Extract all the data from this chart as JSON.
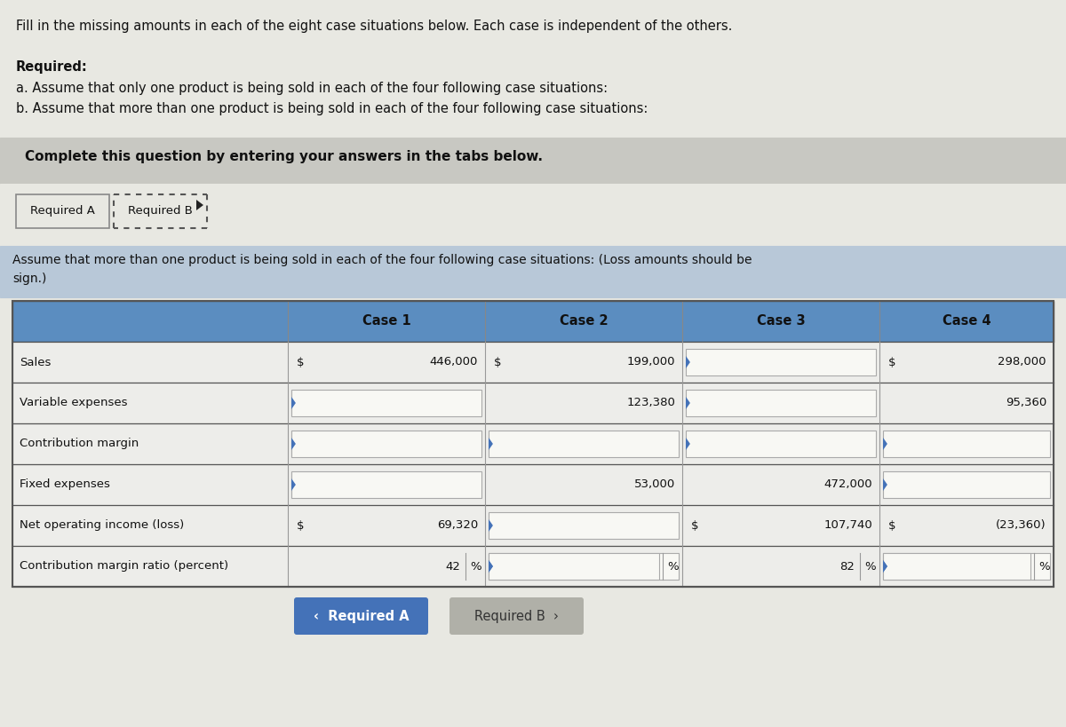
{
  "title_text": "Fill in the missing amounts in each of the eight case situations below. Each case is independent of the others.",
  "required_label": "Required:",
  "req_a": "a. Assume that only one product is being sold in each of the four following case situations:",
  "req_b": "b. Assume that more than one product is being sold in each of the four following case situations:",
  "complete_text": "Complete this question by entering your answers in the tabs below.",
  "tab1_text": "Required A",
  "tab2_text": "Required B",
  "instruction_line1": "Assume that more than one product is being sold in each of the four following case situations: (Loss amounts should be",
  "instruction_line2": "sign.)",
  "col_headers": [
    "",
    "Case 1",
    "Case 2",
    "Case 3",
    "Case 4"
  ],
  "row_labels": [
    "Sales",
    "Variable expenses",
    "Contribution margin",
    "Fixed expenses",
    "Net operating income (loss)",
    "Contribution margin ratio (percent)"
  ],
  "cell_data": {
    "Sales": {
      "case1": {
        "prefix": "$",
        "value": "446,000"
      },
      "case2": {
        "prefix": "$",
        "value": "199,000"
      },
      "case3": {
        "prefix": "",
        "value": ""
      },
      "case4": {
        "prefix": "$",
        "value": "298,000"
      }
    },
    "Variable expenses": {
      "case1": {
        "prefix": "",
        "value": ""
      },
      "case2": {
        "prefix": "",
        "value": "123,380"
      },
      "case3": {
        "prefix": "",
        "value": ""
      },
      "case4": {
        "prefix": "",
        "value": "95,360"
      }
    },
    "Contribution margin": {
      "case1": {
        "prefix": "",
        "value": ""
      },
      "case2": {
        "prefix": "",
        "value": ""
      },
      "case3": {
        "prefix": "",
        "value": ""
      },
      "case4": {
        "prefix": "",
        "value": ""
      }
    },
    "Fixed expenses": {
      "case1": {
        "prefix": "",
        "value": ""
      },
      "case2": {
        "prefix": "",
        "value": "53,000"
      },
      "case3": {
        "prefix": "",
        "value": "472,000"
      },
      "case4": {
        "prefix": "",
        "value": ""
      }
    },
    "Net operating income (loss)": {
      "case1": {
        "prefix": "$",
        "value": "69,320"
      },
      "case2": {
        "prefix": "",
        "value": ""
      },
      "case3": {
        "prefix": "$",
        "value": "107,740"
      },
      "case4": {
        "prefix": "$",
        "value": "(23,360)"
      }
    },
    "Contribution margin ratio (percent)": {
      "case1": {
        "value": "42",
        "suffix": "%"
      },
      "case2": {
        "value": "",
        "suffix": "%"
      },
      "case3": {
        "value": "82",
        "suffix": "%"
      },
      "case4": {
        "value": "",
        "suffix": "%"
      }
    }
  },
  "bg_top": "#e8e8e2",
  "bg_gray_band": "#c8c8c2",
  "bg_tabs_area": "#d8d8d0",
  "bg_instr_band": "#b8c8d8",
  "header_blue": "#5b8dc0",
  "row_light": "#ededea",
  "row_input": "#f5f5f2",
  "input_box_color": "#e8e8e4",
  "btn_blue": "#4472b8",
  "btn_gray": "#b0b0a8",
  "triangle_blue": "#4472b8",
  "border_dark": "#555555",
  "border_med": "#999999"
}
